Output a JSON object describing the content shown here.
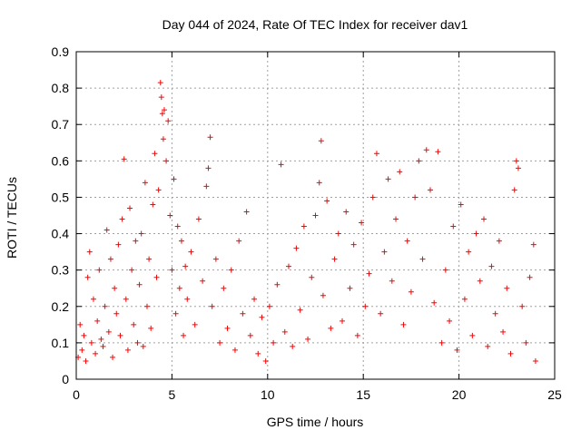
{
  "chart_data": {
    "type": "scatter",
    "title": "Day 044 of 2024, Rate Of TEC Index for receiver dav1",
    "xlabel": "GPS time / hours",
    "ylabel": "ROTI / TECUs",
    "xlim": [
      0,
      25
    ],
    "ylim": [
      0,
      0.9
    ],
    "x_ticks": [
      "0",
      "5",
      "10",
      "15",
      "20",
      "25"
    ],
    "y_ticks": [
      "0",
      "0.1",
      "0.2",
      "0.3",
      "0.4",
      "0.5",
      "0.6",
      "0.7",
      "0.8",
      "0.9"
    ],
    "grid": true,
    "marker": "+",
    "color": "#ff0000",
    "series": [
      {
        "points": [
          [
            0.1,
            0.06
          ],
          [
            0.2,
            0.15
          ],
          [
            0.3,
            0.08
          ],
          [
            0.4,
            0.12
          ],
          [
            0.5,
            0.05
          ],
          [
            0.6,
            0.28
          ],
          [
            0.7,
            0.35
          ],
          [
            0.8,
            0.1
          ],
          [
            0.9,
            0.22
          ],
          [
            1.0,
            0.07
          ],
          [
            1.1,
            0.16
          ],
          [
            1.2,
            0.3
          ],
          [
            1.3,
            0.11
          ],
          [
            1.4,
            0.09
          ],
          [
            1.5,
            0.2
          ],
          [
            1.6,
            0.41
          ],
          [
            1.7,
            0.13
          ],
          [
            1.8,
            0.33
          ],
          [
            1.9,
            0.06
          ],
          [
            2.0,
            0.25
          ],
          [
            2.1,
            0.18
          ],
          [
            2.2,
            0.37
          ],
          [
            2.3,
            0.12
          ],
          [
            2.4,
            0.44
          ],
          [
            2.5,
            0.605
          ],
          [
            2.6,
            0.22
          ],
          [
            2.7,
            0.08
          ],
          [
            2.8,
            0.47
          ],
          [
            2.9,
            0.3
          ],
          [
            3.0,
            0.15
          ],
          [
            3.1,
            0.38
          ],
          [
            3.2,
            0.1
          ],
          [
            3.3,
            0.26
          ],
          [
            3.4,
            0.4
          ],
          [
            3.5,
            0.09
          ],
          [
            3.6,
            0.54
          ],
          [
            3.7,
            0.2
          ],
          [
            3.8,
            0.33
          ],
          [
            3.9,
            0.14
          ],
          [
            4.0,
            0.48
          ],
          [
            4.1,
            0.62
          ],
          [
            4.2,
            0.28
          ],
          [
            4.3,
            0.52
          ],
          [
            4.4,
            0.815
          ],
          [
            4.45,
            0.775
          ],
          [
            4.5,
            0.73
          ],
          [
            4.55,
            0.66
          ],
          [
            4.6,
            0.74
          ],
          [
            4.7,
            0.6
          ],
          [
            4.8,
            0.71
          ],
          [
            4.9,
            0.45
          ],
          [
            5.0,
            0.3
          ],
          [
            5.1,
            0.55
          ],
          [
            5.2,
            0.18
          ],
          [
            5.3,
            0.42
          ],
          [
            5.4,
            0.25
          ],
          [
            5.5,
            0.38
          ],
          [
            5.6,
            0.12
          ],
          [
            5.7,
            0.31
          ],
          [
            5.8,
            0.22
          ],
          [
            6.0,
            0.35
          ],
          [
            6.2,
            0.15
          ],
          [
            6.4,
            0.44
          ],
          [
            6.6,
            0.27
          ],
          [
            6.8,
            0.53
          ],
          [
            6.9,
            0.58
          ],
          [
            7.0,
            0.665
          ],
          [
            7.1,
            0.2
          ],
          [
            7.3,
            0.33
          ],
          [
            7.5,
            0.1
          ],
          [
            7.7,
            0.25
          ],
          [
            7.9,
            0.14
          ],
          [
            8.1,
            0.3
          ],
          [
            8.3,
            0.08
          ],
          [
            8.5,
            0.38
          ],
          [
            8.7,
            0.18
          ],
          [
            8.9,
            0.46
          ],
          [
            9.1,
            0.12
          ],
          [
            9.3,
            0.22
          ],
          [
            9.5,
            0.07
          ],
          [
            9.7,
            0.17
          ],
          [
            9.9,
            0.05
          ],
          [
            10.1,
            0.2
          ],
          [
            10.3,
            0.1
          ],
          [
            10.5,
            0.26
          ],
          [
            10.7,
            0.59
          ],
          [
            10.9,
            0.13
          ],
          [
            11.1,
            0.31
          ],
          [
            11.3,
            0.09
          ],
          [
            11.5,
            0.36
          ],
          [
            11.7,
            0.19
          ],
          [
            11.9,
            0.42
          ],
          [
            12.1,
            0.11
          ],
          [
            12.3,
            0.28
          ],
          [
            12.5,
            0.45
          ],
          [
            12.7,
            0.54
          ],
          [
            12.8,
            0.655
          ],
          [
            12.9,
            0.23
          ],
          [
            13.1,
            0.49
          ],
          [
            13.3,
            0.14
          ],
          [
            13.5,
            0.33
          ],
          [
            13.7,
            0.4
          ],
          [
            13.9,
            0.16
          ],
          [
            14.1,
            0.46
          ],
          [
            14.3,
            0.25
          ],
          [
            14.5,
            0.37
          ],
          [
            14.7,
            0.12
          ],
          [
            14.9,
            0.43
          ],
          [
            15.1,
            0.2
          ],
          [
            15.3,
            0.29
          ],
          [
            15.5,
            0.5
          ],
          [
            15.7,
            0.62
          ],
          [
            15.9,
            0.18
          ],
          [
            16.1,
            0.35
          ],
          [
            16.3,
            0.55
          ],
          [
            16.5,
            0.27
          ],
          [
            16.7,
            0.44
          ],
          [
            16.9,
            0.57
          ],
          [
            17.1,
            0.15
          ],
          [
            17.3,
            0.38
          ],
          [
            17.5,
            0.24
          ],
          [
            17.7,
            0.5
          ],
          [
            17.9,
            0.6
          ],
          [
            18.1,
            0.33
          ],
          [
            18.3,
            0.63
          ],
          [
            18.5,
            0.52
          ],
          [
            18.7,
            0.21
          ],
          [
            18.9,
            0.625
          ],
          [
            19.1,
            0.1
          ],
          [
            19.3,
            0.3
          ],
          [
            19.5,
            0.16
          ],
          [
            19.7,
            0.42
          ],
          [
            19.9,
            0.08
          ],
          [
            20.1,
            0.48
          ],
          [
            20.3,
            0.22
          ],
          [
            20.5,
            0.35
          ],
          [
            20.7,
            0.12
          ],
          [
            20.9,
            0.4
          ],
          [
            21.1,
            0.27
          ],
          [
            21.3,
            0.44
          ],
          [
            21.5,
            0.09
          ],
          [
            21.7,
            0.31
          ],
          [
            21.9,
            0.18
          ],
          [
            22.1,
            0.38
          ],
          [
            22.3,
            0.13
          ],
          [
            22.5,
            0.25
          ],
          [
            22.7,
            0.07
          ],
          [
            22.9,
            0.52
          ],
          [
            23.0,
            0.6
          ],
          [
            23.1,
            0.58
          ],
          [
            23.3,
            0.2
          ],
          [
            23.5,
            0.1
          ],
          [
            23.7,
            0.28
          ],
          [
            23.9,
            0.37
          ],
          [
            24.0,
            0.05
          ]
        ]
      }
    ]
  }
}
